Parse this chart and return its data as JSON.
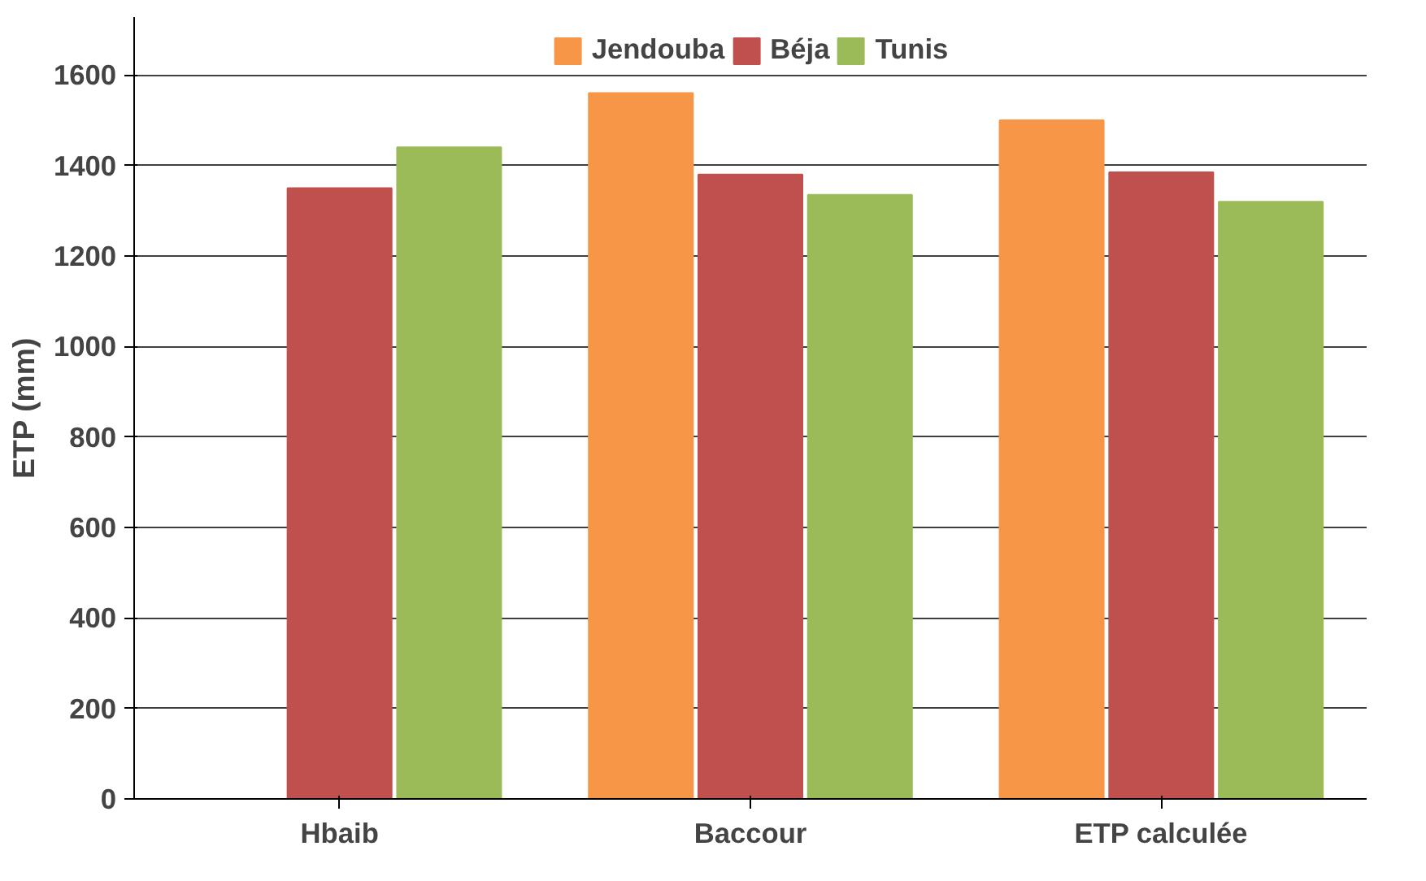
{
  "chart_data": {
    "type": "bar",
    "ylabel": "ETP (mm)",
    "categories": [
      "Hbaib",
      "Baccour",
      "ETP calculée"
    ],
    "series": [
      {
        "name": "Jendouba",
        "color": "#f79646",
        "values": [
          0,
          1560,
          1500
        ]
      },
      {
        "name": "Béja",
        "color": "#c0504d",
        "values": [
          1350,
          1380,
          1385
        ]
      },
      {
        "name": "Tunis",
        "color": "#9bbb59",
        "values": [
          1440,
          1335,
          1320
        ]
      }
    ],
    "ylim": [
      0,
      1600
    ],
    "yticks": [
      0,
      200,
      400,
      600,
      800,
      1000,
      1200,
      1400,
      1600
    ],
    "grid": "y",
    "legend": "top"
  }
}
